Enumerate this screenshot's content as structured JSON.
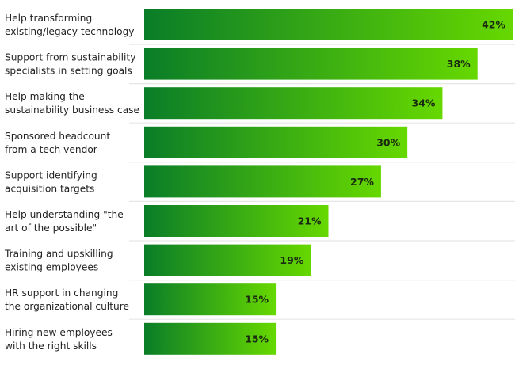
{
  "chart_data": {
    "type": "bar",
    "orientation": "horizontal",
    "title": "",
    "xlabel": "",
    "ylabel": "",
    "xlim": [
      0,
      42
    ],
    "grid": false,
    "legend": "none",
    "categories": [
      [
        "Help transforming",
        "existing/legacy technology"
      ],
      [
        "Support from sustainability",
        "specialists in setting goals"
      ],
      [
        "Help making the",
        "sustainability business case"
      ],
      [
        "Sponsored headcount",
        "from a tech vendor"
      ],
      [
        "Support identifying",
        "acquisition targets"
      ],
      [
        "Help understanding \"the",
        "art of the possible\""
      ],
      [
        "Training and upskilling",
        "existing employees"
      ],
      [
        "HR support in changing",
        "the organizational culture"
      ],
      [
        "Hiring new employees",
        "with the right skills"
      ]
    ],
    "values": [
      42,
      38,
      34,
      30,
      27,
      21,
      19,
      15,
      15
    ],
    "value_labels": [
      "42%",
      "38%",
      "34%",
      "30%",
      "27%",
      "21%",
      "19%",
      "15%",
      "15%"
    ],
    "colors": {
      "bar_gradient_start": "#0a7d28",
      "bar_gradient_end": "#66d800",
      "axis": "#e2e2e2",
      "separator": "#e6e6e6"
    }
  }
}
